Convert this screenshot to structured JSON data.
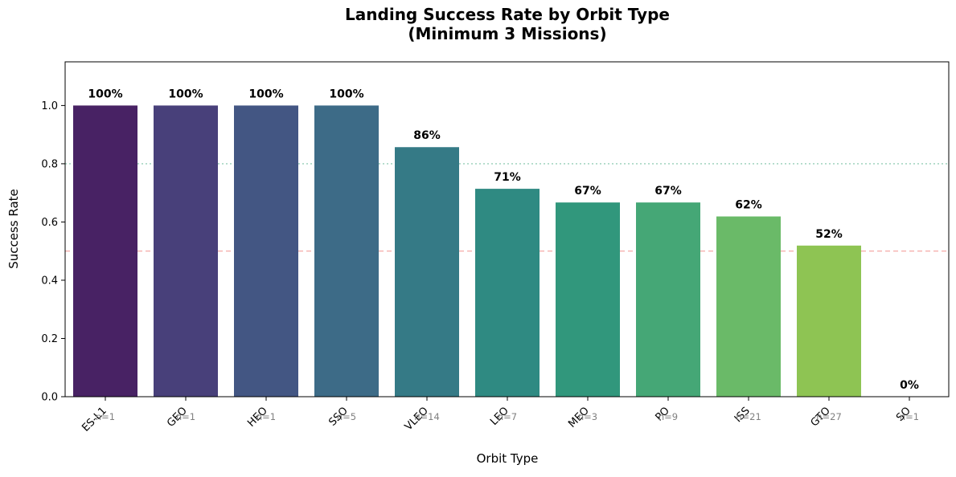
{
  "chart_data": {
    "type": "bar",
    "title_line1": "Landing Success Rate by Orbit Type",
    "title_line2": "(Minimum 3 Missions)",
    "xlabel": "Orbit Type",
    "ylabel": "Success Rate",
    "ylim": [
      0,
      1.15
    ],
    "yticks": [
      "0.0",
      "0.2",
      "0.4",
      "0.6",
      "0.8",
      "1.0"
    ],
    "categories": [
      "ES-L1",
      "GEO",
      "HEO",
      "SSO",
      "VLEO",
      "LEO",
      "MEO",
      "PO",
      "ISS",
      "GTO",
      "SO"
    ],
    "values": [
      1.0,
      1.0,
      1.0,
      1.0,
      0.857,
      0.714,
      0.667,
      0.667,
      0.619,
      0.519,
      0.0
    ],
    "value_labels": [
      "100%",
      "100%",
      "100%",
      "100%",
      "86%",
      "71%",
      "67%",
      "67%",
      "62%",
      "52%",
      "0%"
    ],
    "counts": [
      "n=1",
      "n=1",
      "n=1",
      "n=5",
      "n=14",
      "n=7",
      "n=3",
      "n=9",
      "n=21",
      "n=27",
      "n=1"
    ],
    "colors": [
      "#482264",
      "#48407a",
      "#435683",
      "#3d6b87",
      "#357a86",
      "#2f8a82",
      "#31977c",
      "#45a776",
      "#6aba68",
      "#8ec453",
      "#b0d041"
    ],
    "reference_lines": [
      {
        "value": 0.8,
        "color": "#7fc4a8",
        "style": "dotted"
      },
      {
        "value": 0.5,
        "color": "#f4a09c",
        "style": "dashed"
      }
    ],
    "grid": false,
    "legend": "none"
  }
}
